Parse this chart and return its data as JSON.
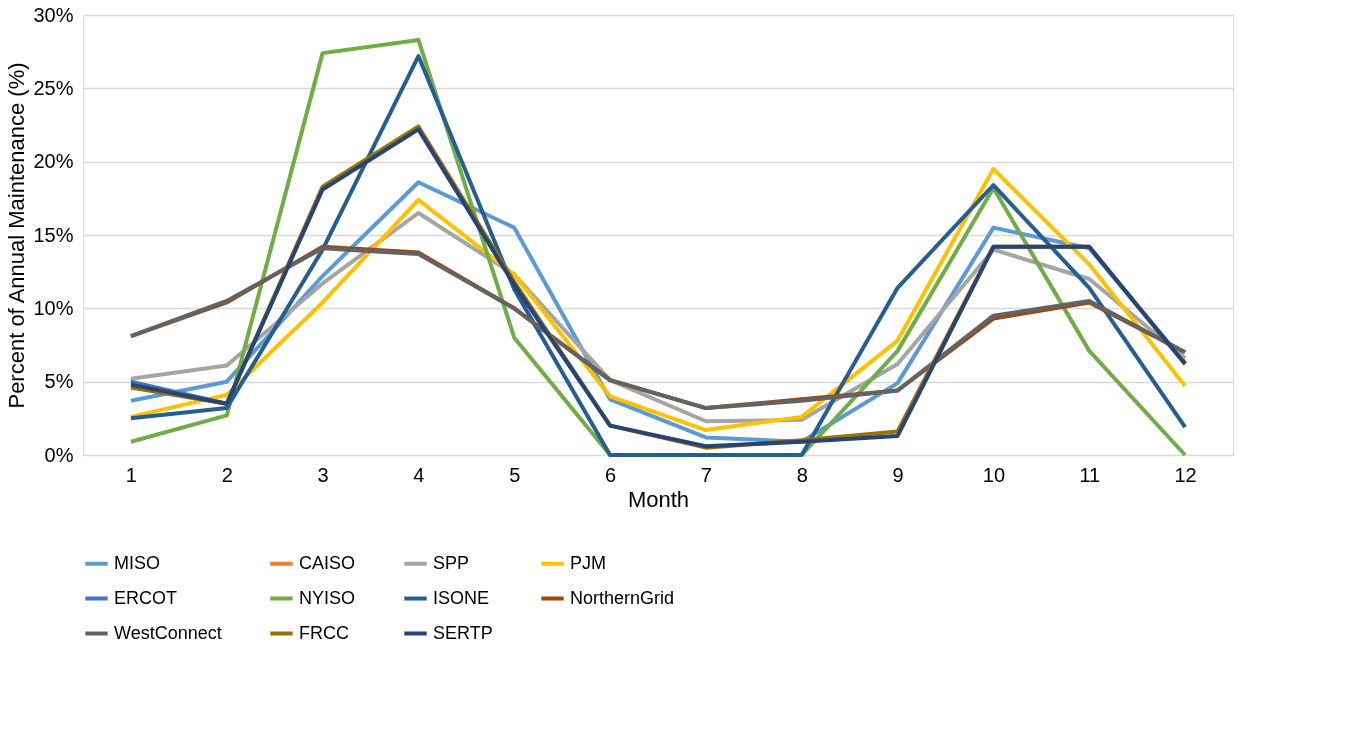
{
  "chart_data": {
    "type": "line",
    "xlabel": "Month",
    "ylabel": "Percent of Annual Maintenance (%)",
    "x": [
      1,
      2,
      3,
      4,
      5,
      6,
      7,
      8,
      9,
      10,
      11,
      12
    ],
    "xlim": [
      0.5,
      12.5
    ],
    "xticks": [
      1,
      2,
      3,
      4,
      5,
      6,
      7,
      8,
      9,
      10,
      11,
      12
    ],
    "ylim": [
      0,
      30
    ],
    "yticks": [
      {
        "value": 0,
        "label": "0%"
      },
      {
        "value": 5,
        "label": "5%"
      },
      {
        "value": 10,
        "label": "10%"
      },
      {
        "value": 15,
        "label": "15%"
      },
      {
        "value": 20,
        "label": "20%"
      },
      {
        "value": 25,
        "label": "25%"
      },
      {
        "value": 30,
        "label": "30%"
      }
    ],
    "grid": "y",
    "legend": "bottom",
    "marker": "none",
    "line_style": "solid",
    "series": [
      {
        "name": "MISO",
        "color": "#5b9bd5",
        "values": [
          3.7,
          5.0,
          12.2,
          18.6,
          15.5,
          3.8,
          1.2,
          0.9,
          4.9,
          15.5,
          14.1,
          6.3
        ]
      },
      {
        "name": "CAISO",
        "color": "#ed7d31",
        "values": [
          null,
          null,
          null,
          null,
          null,
          null,
          null,
          null,
          null,
          null,
          null,
          null
        ]
      },
      {
        "name": "SPP",
        "color": "#a5a5a5",
        "values": [
          5.2,
          6.1,
          11.7,
          16.5,
          12.3,
          5.1,
          2.3,
          2.4,
          6.2,
          14.0,
          12.0,
          6.6
        ]
      },
      {
        "name": "PJM",
        "color": "#ffc000",
        "values": [
          2.6,
          4.1,
          10.4,
          17.4,
          12.3,
          4.0,
          1.7,
          2.6,
          7.8,
          19.5,
          13.0,
          4.7
        ]
      },
      {
        "name": "ERCOT",
        "color": "#4472c4",
        "values": [
          5.0,
          3.5,
          null,
          null,
          null,
          null,
          null,
          null,
          null,
          null,
          null,
          null
        ]
      },
      {
        "name": "NYISO",
        "color": "#70ad47",
        "values": [
          0.9,
          2.7,
          27.4,
          28.3,
          8.0,
          0,
          0,
          0,
          7.1,
          18.2,
          7.1,
          0
        ]
      },
      {
        "name": "ISONE",
        "color": "#255e91",
        "values": [
          2.5,
          3.2,
          14.0,
          27.2,
          11.3,
          0,
          0,
          0,
          11.4,
          18.4,
          11.4,
          1.9
        ]
      },
      {
        "name": "NorthernGrid",
        "color": "#9e480e",
        "values": [
          8.1,
          10.4,
          14.2,
          13.8,
          10.0,
          5.1,
          3.2,
          3.8,
          4.4,
          9.3,
          10.4,
          7.0
        ]
      },
      {
        "name": "WestConnect",
        "color": "#636363",
        "values": [
          8.1,
          10.5,
          14.1,
          13.7,
          10.0,
          5.1,
          3.2,
          3.7,
          4.4,
          9.5,
          10.5,
          7.0
        ]
      },
      {
        "name": "FRCC",
        "color": "#997300",
        "values": [
          4.6,
          3.5,
          18.3,
          22.4,
          11.8,
          2.0,
          0.5,
          1.0,
          1.6,
          14.2,
          14.2,
          6.2
        ]
      },
      {
        "name": "SERTP",
        "color": "#264478",
        "values": [
          4.8,
          3.5,
          18.1,
          22.2,
          11.6,
          2.0,
          0.6,
          0.9,
          1.3,
          14.2,
          14.2,
          6.2
        ]
      }
    ]
  }
}
